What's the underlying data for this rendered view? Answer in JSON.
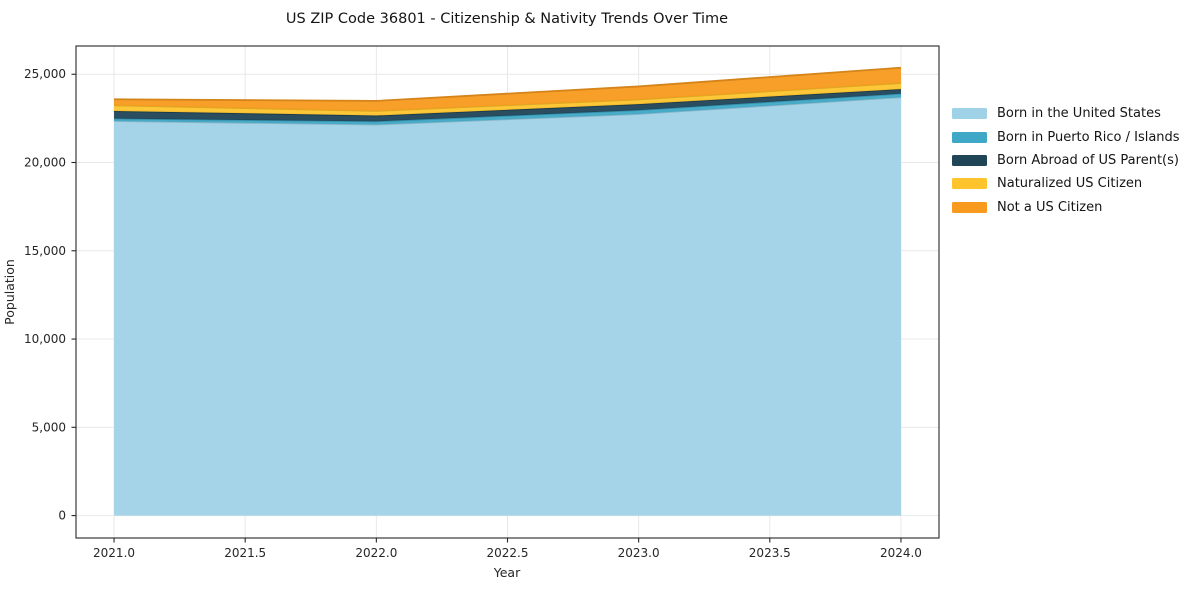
{
  "chart_data": {
    "type": "area",
    "stacked": true,
    "title": "US ZIP Code 36801 - Citizenship & Nativity Trends Over Time",
    "xlabel": "Year",
    "ylabel": "Population",
    "x": [
      2021,
      2022,
      2023,
      2024
    ],
    "series": [
      {
        "name": "Born in the United States",
        "color": "#a0d2e7",
        "values": [
          22350,
          22150,
          22750,
          23700
        ]
      },
      {
        "name": "Born in Puerto Rico / Islands",
        "color": "#3fa8c6",
        "values": [
          140,
          180,
          220,
          200
        ]
      },
      {
        "name": "Born Abroad of US Parent(s)",
        "color": "#1f4557",
        "values": [
          430,
          330,
          340,
          260
        ]
      },
      {
        "name": "Naturalized US Citizen",
        "color": "#fdc42d",
        "values": [
          320,
          260,
          260,
          340
        ]
      },
      {
        "name": "Not a US Citizen",
        "color": "#f79a1e",
        "values": [
          340,
          570,
          740,
          870
        ]
      }
    ],
    "totals": [
      23580,
      23490,
      24310,
      25370
    ],
    "xticks": [
      2021.0,
      2021.5,
      2022.0,
      2022.5,
      2023.0,
      2023.5,
      2024.0
    ],
    "xtick_labels": [
      "2021.0",
      "2021.5",
      "2022.0",
      "2022.5",
      "2023.0",
      "2023.5",
      "2024.0"
    ],
    "yticks": [
      0,
      5000,
      10000,
      15000,
      20000,
      25000
    ],
    "ytick_labels": [
      "0",
      "5,000",
      "10,000",
      "15,000",
      "20,000",
      "25,000"
    ],
    "xlim": [
      2020.855,
      2024.145
    ],
    "ylim": [
      -1270,
      26600
    ],
    "grid": true,
    "legend_position": "right",
    "background_color": "#ffffff",
    "grid_color": "#e8e8e8",
    "spine_color": "#262626"
  }
}
